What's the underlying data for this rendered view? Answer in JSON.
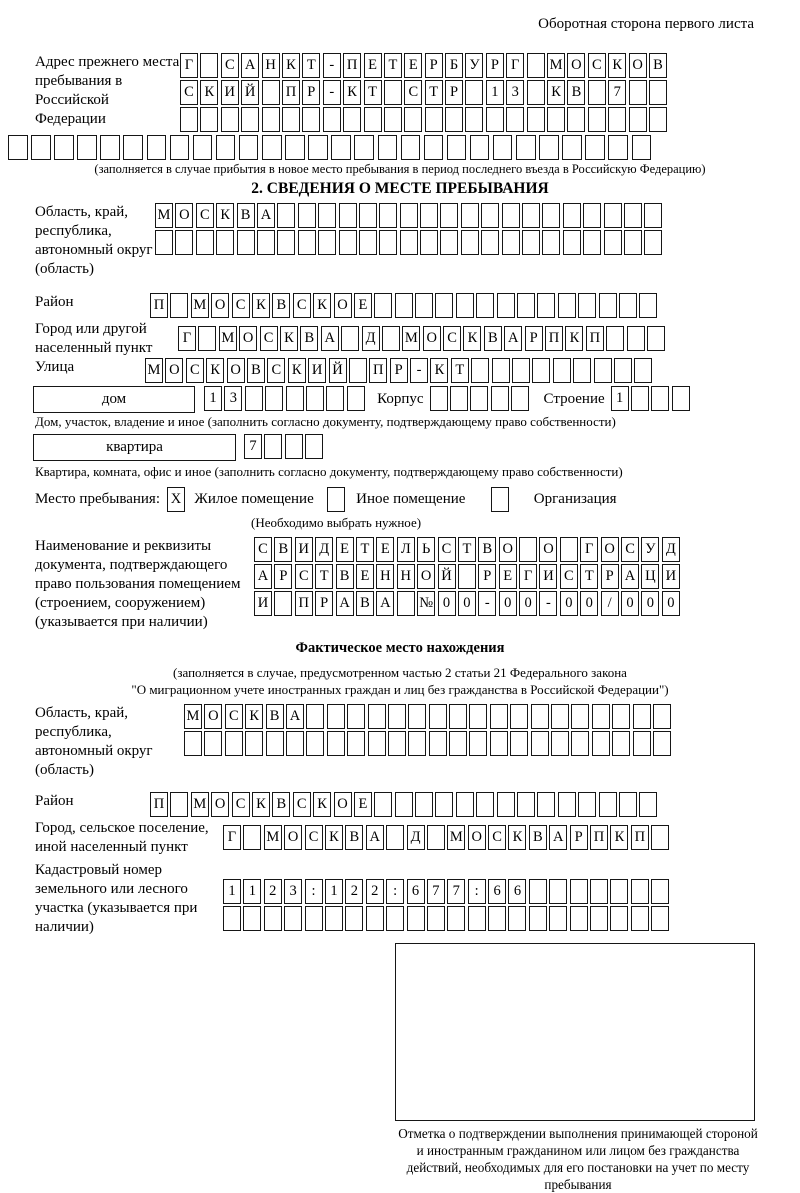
{
  "page": {
    "header_note": "Оборотная сторона первого листа"
  },
  "prev_address": {
    "label": "Адрес прежнего места пребывания в Российской Федерации",
    "rows": [
      "Г САНКТ-ПЕТЕРБУРГ МОСКОВ",
      "СКИЙ ПР-КТ СТР 13 КВ 7  ",
      "                        ",
      "                            "
    ],
    "caption": "(заполняется в случае прибытия в новое место пребывания в период последнего въезда в Российскую Федерацию)"
  },
  "section2": {
    "title": "2. СВЕДЕНИЯ О МЕСТЕ ПРЕБЫВАНИЯ",
    "region": {
      "label": "Область, край, республика, автономный округ (область)",
      "rows": [
        "МОСКВА                   ",
        "                         "
      ]
    },
    "district": {
      "label": "Район",
      "row": "П МОСКВСКОЕ              "
    },
    "city": {
      "label": "Город или другой населенный пункт",
      "row": "Г МОСКВА Д МОСКВАРПКП   "
    },
    "street": {
      "label": "Улица",
      "row": "МОСКОВСКИЙ ПР-КТ         "
    },
    "house": {
      "box_label": "дом",
      "digits": "13      ",
      "korpus_label": "Корпус",
      "korpus_row": "     ",
      "stroenie_label": "Строение",
      "stroenie_row": "1   ",
      "caption": "Дом, участок, владение и иное (заполнить согласно документу, подтверждающему право собственности)"
    },
    "apartment": {
      "box_label": "квартира",
      "row": "7   ",
      "caption": "Квартира, комната, офис и иное (заполнить согласно документу, подтверждающему право собственности)"
    },
    "stay_type": {
      "label": "Место пребывания:",
      "options": [
        {
          "label": "Жилое помещение",
          "checked": "X"
        },
        {
          "label": "Иное помещение",
          "checked": " "
        },
        {
          "label": "Организация",
          "checked": " "
        }
      ],
      "caption": "(Необходимо выбрать нужное)"
    },
    "doc": {
      "label": "Наименование и реквизиты документа, подтверждающего право пользования помещением (строением, сооружением) (указывается при наличии)",
      "rows": [
        "СВИДЕТЕЛЬСТВО О ГОСУД",
        "АРСТВЕННОЙ РЕГИСТРАЦИ",
        "И ПРАВА №00-00-00/000"
      ]
    }
  },
  "actual_location": {
    "title": "Фактическое место нахождения",
    "caption_line1": "(заполняется в случае, предусмотренном частью 2 статьи 21 Федерального закона",
    "caption_line2": "\"О миграционном учете иностранных граждан и лиц без гражданства в Российской Федерации\")",
    "region": {
      "label": "Область, край, республика, автономный округ (область)",
      "rows": [
        "МОСКВА                  ",
        "                        "
      ]
    },
    "district": {
      "label": "Район",
      "row": "П МОСКВСКОЕ              "
    },
    "city": {
      "label": "Город, сельское поселение, иной населенный пункт",
      "row": "Г МОСКВА Д МОСКВАРПКП "
    },
    "cadastral": {
      "label": "Кадастровый номер земельного или лесного участка (указывается при наличии)",
      "rows": [
        "1123:122:677:66       ",
        "                      "
      ]
    }
  },
  "stamp": {
    "caption": "Отметка о подтверждении выполнения принимающей стороной и иностранным гражданином или лицом без гражданства действий, необходимых для его постановки на учет по месту пребывания"
  }
}
